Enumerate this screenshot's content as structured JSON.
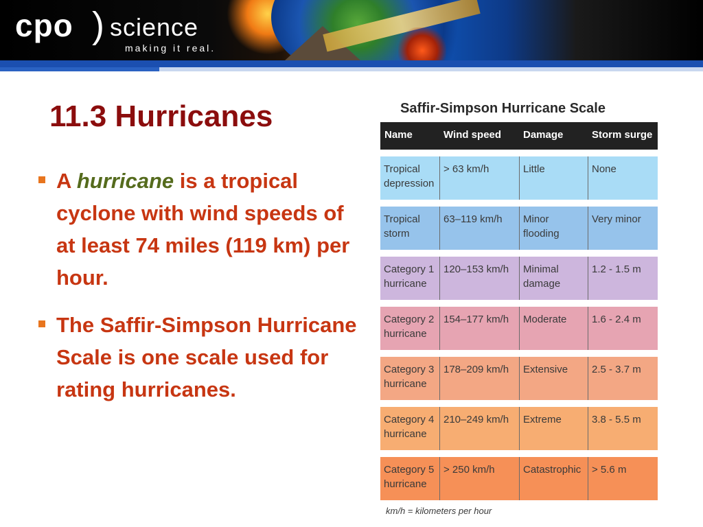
{
  "header": {
    "logo_main": "cpo",
    "logo_paren": ")",
    "logo_word": "science",
    "logo_tagline": "making it real."
  },
  "slide": {
    "title": "11.3 Hurricanes",
    "bullets": [
      {
        "before": "A ",
        "term": "hurricane",
        "after": " is a tropical cyclone with wind speeds of at least 74 miles (119 km) per hour."
      },
      {
        "text": "The Saffir-Simpson Hurricane Scale is one scale used for rating hurricanes."
      }
    ]
  },
  "table": {
    "title": "Saffir-Simpson Hurricane Scale",
    "columns": [
      "Name",
      "Wind speed",
      "Damage",
      "Storm surge"
    ],
    "rows": [
      {
        "name": "Tropical depression",
        "wind": "> 63 km/h",
        "damage": "Little",
        "surge": "None",
        "color": "#a9dcf6"
      },
      {
        "name": "Tropical storm",
        "wind": "63–119 km/h",
        "damage": "Minor flooding",
        "surge": "Very minor",
        "color": "#96c3eb"
      },
      {
        "name": "Category 1 hurricane",
        "wind": "120–153 km/h",
        "damage": "Minimal damage",
        "surge": "1.2 - 1.5 m",
        "color": "#cdb6dd"
      },
      {
        "name": "Category 2 hurricane",
        "wind": "154–177 km/h",
        "damage": "Moderate",
        "surge": "1.6 - 2.4 m",
        "color": "#e6a4b2"
      },
      {
        "name": "Category 3 hurricane",
        "wind": "178–209 km/h",
        "damage": "Extensive",
        "surge": "2.5 - 3.7 m",
        "color": "#f3a784"
      },
      {
        "name": "Category 4 hurricane",
        "wind": "210–249 km/h",
        "damage": "Extreme",
        "surge": "3.8 - 5.5 m",
        "color": "#f7ad72"
      },
      {
        "name": "Category 5 hurricane",
        "wind": "> 250 km/h",
        "damage": "Catastrophic",
        "surge": "> 5.6 m",
        "color": "#f69057"
      }
    ],
    "footnote": "km/h = kilometers per hour"
  },
  "colors": {
    "title": "#8b0d0d",
    "bullet_text": "#c73612",
    "term": "#556b1d",
    "bullet_marker": "#e8751e",
    "header_bar": "#1b4fb0"
  }
}
